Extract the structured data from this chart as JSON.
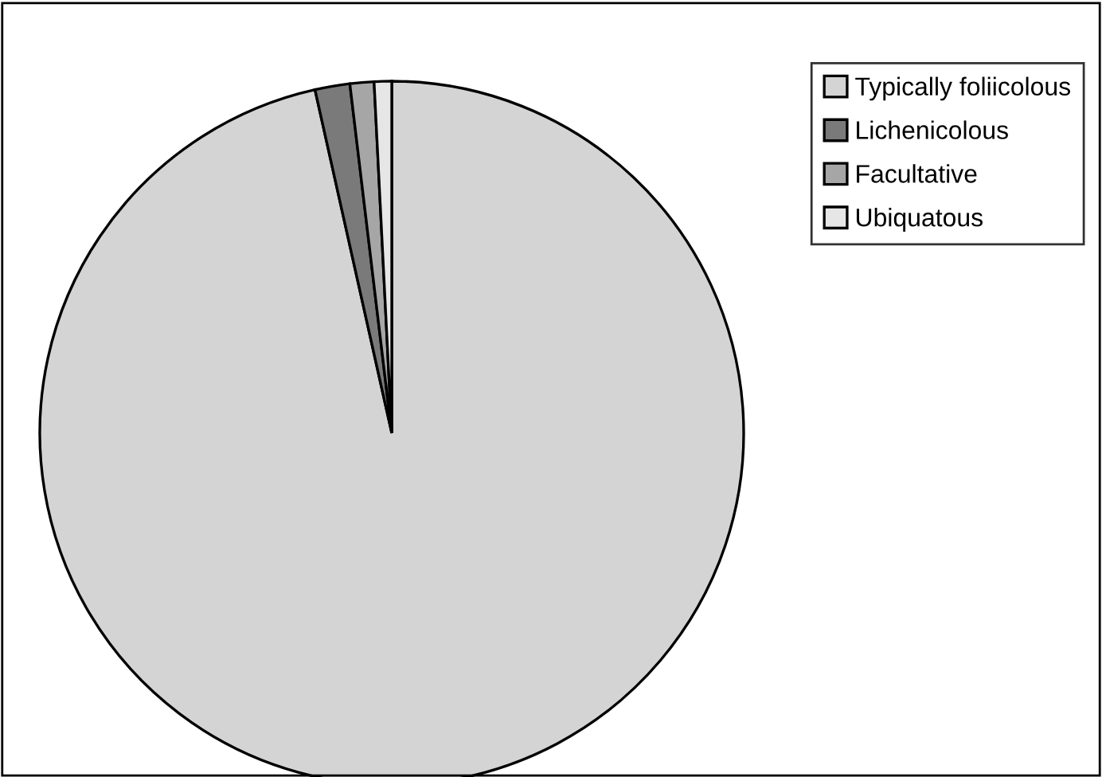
{
  "chart_data": {
    "type": "pie",
    "categories": [
      "Typically foliicolous",
      "Lichenicolous",
      "Facultative",
      "Ubiquatous"
    ],
    "values": [
      96.5,
      1.6,
      1.1,
      0.8
    ],
    "colors": [
      "#d4d4d4",
      "#7a7a7a",
      "#a6a6a6",
      "#e6e6e6"
    ],
    "legend": "top right"
  }
}
